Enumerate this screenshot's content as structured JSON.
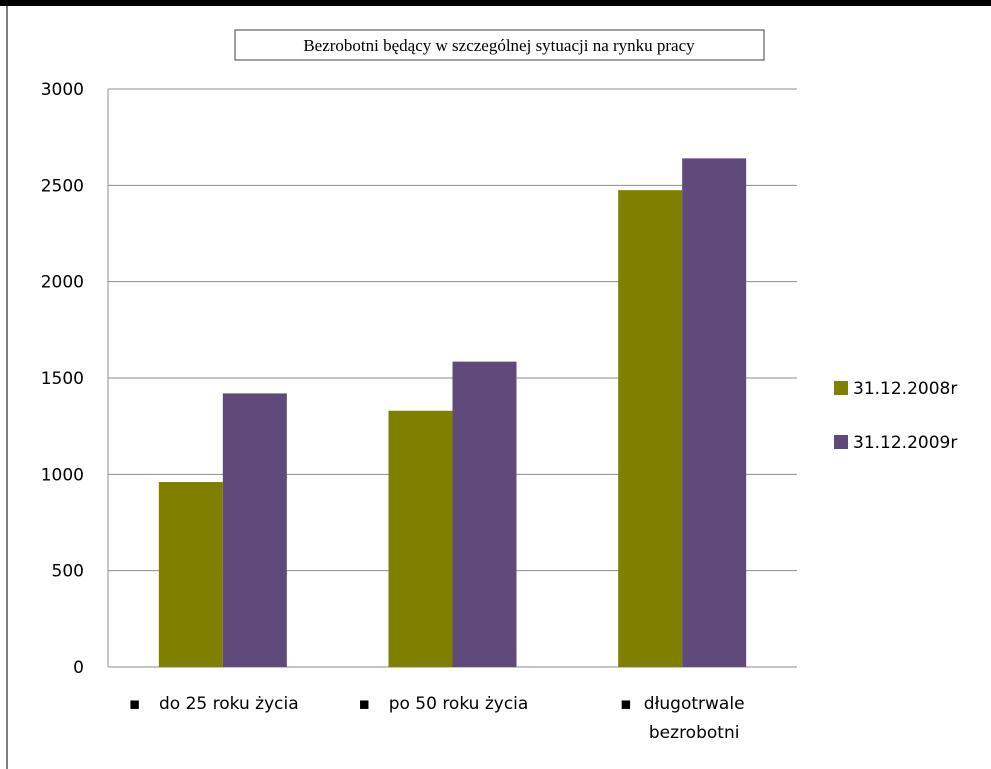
{
  "chart_data": {
    "type": "bar",
    "title": "Bezrobotni będący w szczególnej sytuacji na rynku pracy",
    "categories": [
      "do 25 roku życia",
      "po 50 roku życia",
      "długotrwale bezrobotni"
    ],
    "series": [
      {
        "name": "31.12.2008r",
        "color": "#808000",
        "values": [
          960,
          1330,
          2475
        ]
      },
      {
        "name": "31.12.2009r",
        "color": "#604a7b",
        "values": [
          1420,
          1585,
          2640
        ]
      }
    ],
    "y_ticks": [
      "0",
      "500",
      "1000",
      "1500",
      "2000",
      "2500",
      "3000"
    ],
    "ylim": [
      0,
      3000
    ],
    "grid": true,
    "legend_position": "right"
  }
}
